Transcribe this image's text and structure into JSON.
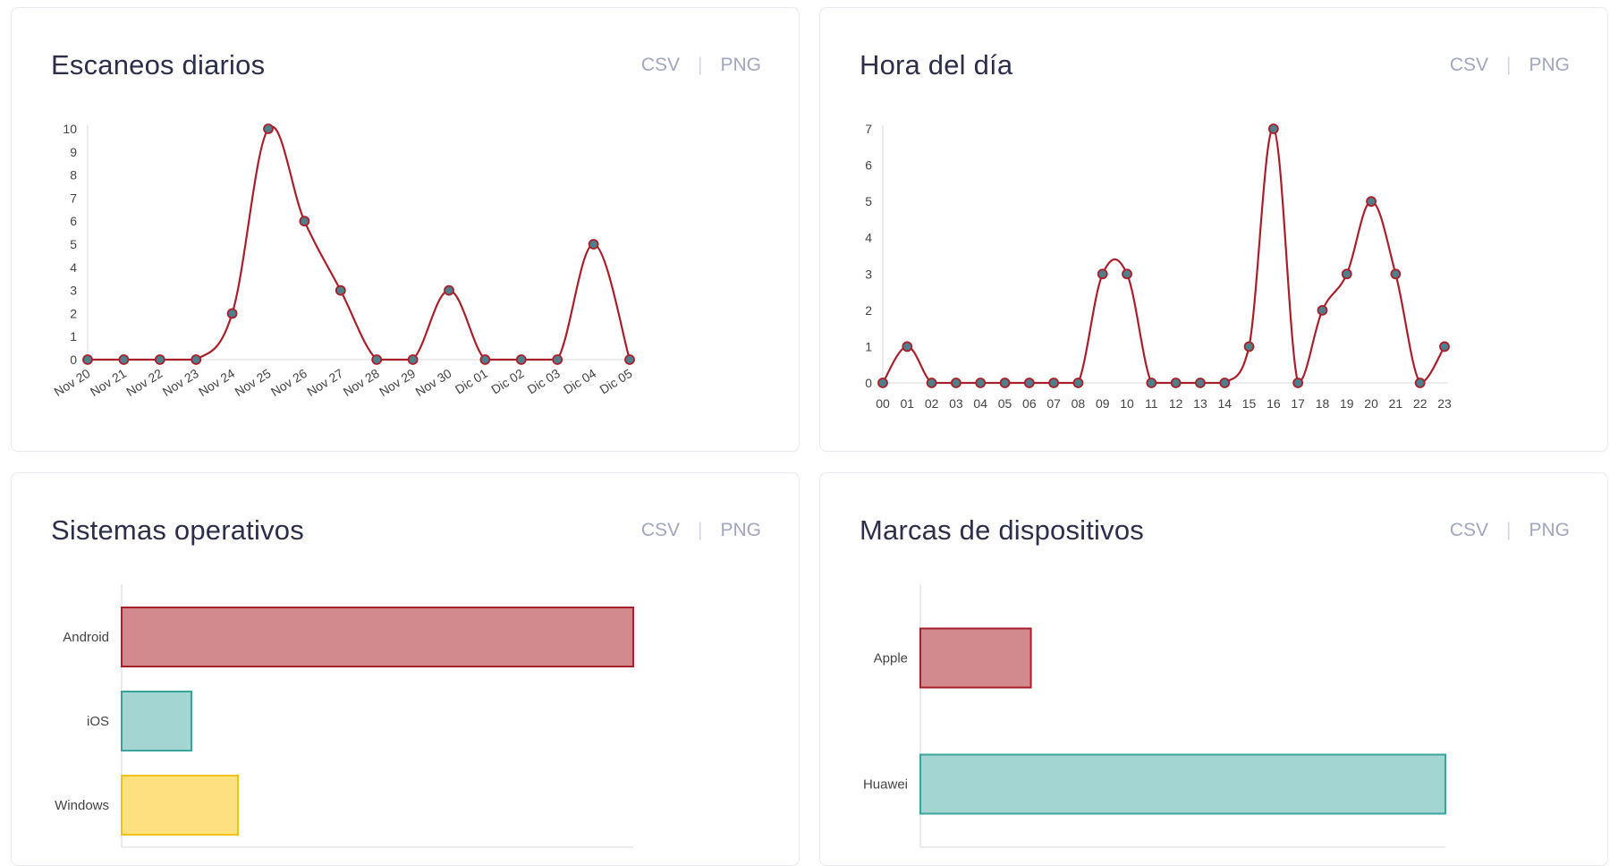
{
  "actions": {
    "csv": "CSV",
    "png": "PNG",
    "separator": "|"
  },
  "colors": {
    "line": "#a8202c",
    "point_fill": "#4f7f8a",
    "point_stroke": "#a8202c",
    "axis": "#d8d8d8",
    "tick_text": "#444444",
    "bar_fill_1": "#d28a8f",
    "bar_stroke_1": "#a8202c",
    "bar_fill_2": "#a3d5d2",
    "bar_stroke_2": "#3aa39b",
    "bar_fill_3": "#fde07f",
    "bar_stroke_3": "#f2c21a"
  },
  "cards": [
    {
      "title": "Escaneos diarios"
    },
    {
      "title": "Hora del día"
    },
    {
      "title": "Sistemas operativos"
    },
    {
      "title": "Marcas de dispositivos"
    }
  ],
  "chart_data": [
    {
      "type": "line",
      "title": "Escaneos diarios",
      "categories": [
        "Nov 20",
        "Nov 21",
        "Nov 22",
        "Nov 23",
        "Nov 24",
        "Nov 25",
        "Nov 26",
        "Nov 27",
        "Nov 28",
        "Nov 29",
        "Nov 30",
        "Dic 01",
        "Dic 02",
        "Dic 03",
        "Dic 04",
        "Dic 05"
      ],
      "values": [
        0,
        0,
        0,
        0,
        2,
        10,
        6,
        3,
        0,
        0,
        3,
        0,
        0,
        0,
        5,
        0
      ],
      "ylim": [
        0,
        10
      ],
      "yticks": [
        0,
        1,
        2,
        3,
        4,
        5,
        6,
        7,
        8,
        9,
        10
      ],
      "xlabel": "",
      "ylabel": "",
      "grid": false
    },
    {
      "type": "line",
      "title": "Hora del día",
      "categories": [
        "00",
        "01",
        "02",
        "03",
        "04",
        "05",
        "06",
        "07",
        "08",
        "09",
        "10",
        "11",
        "12",
        "13",
        "14",
        "15",
        "16",
        "17",
        "18",
        "19",
        "20",
        "21",
        "22",
        "23"
      ],
      "values": [
        0,
        1,
        0,
        0,
        0,
        0,
        0,
        0,
        0,
        3,
        3,
        0,
        0,
        0,
        0,
        1,
        7,
        0,
        2,
        3,
        5,
        3,
        0,
        1
      ],
      "ylim": [
        0,
        7
      ],
      "yticks": [
        0,
        1,
        2,
        3,
        4,
        5,
        6,
        7
      ],
      "xlabel": "",
      "ylabel": "",
      "grid": false
    },
    {
      "type": "bar",
      "orientation": "horizontal",
      "title": "Sistemas operativos",
      "categories": [
        "Android",
        "iOS",
        "Windows"
      ],
      "values": [
        44,
        6,
        10
      ],
      "xlim": [
        0,
        44
      ],
      "grid": false
    },
    {
      "type": "bar",
      "orientation": "horizontal",
      "title": "Marcas de dispositivos",
      "categories": [
        "Apple",
        "Huawei"
      ],
      "values": [
        8,
        38
      ],
      "xlim": [
        0,
        38
      ],
      "grid": false
    }
  ]
}
